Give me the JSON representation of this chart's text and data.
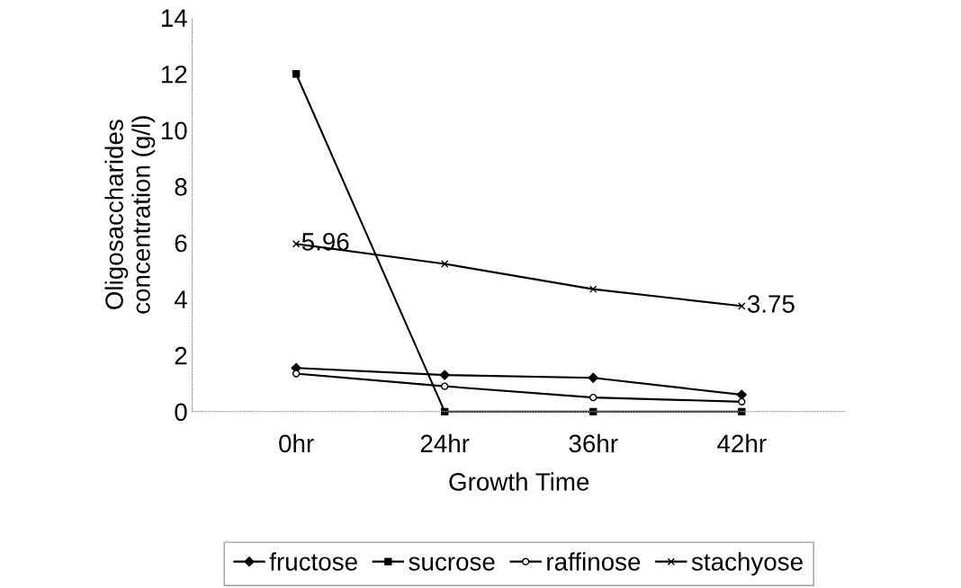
{
  "chart_data": {
    "type": "line",
    "xlabel": "Growth Time",
    "ylabel": "Oligosaccharides\nconcentration (g/l)",
    "categories": [
      "0hr",
      "24hr",
      "36hr",
      "42hr"
    ],
    "series": [
      {
        "name": "fructose",
        "color": "#000000",
        "marker": "diamond",
        "values": [
          1.55,
          1.3,
          1.2,
          0.6
        ]
      },
      {
        "name": "sucrose",
        "color": "#000000",
        "marker": "square",
        "values": [
          12,
          0,
          0,
          0
        ]
      },
      {
        "name": "raffinose",
        "color": "#000000",
        "marker": "circle",
        "values": [
          1.35,
          0.9,
          0.5,
          0.35
        ]
      },
      {
        "name": "stachyose",
        "color": "#000000",
        "marker": "cross",
        "values": [
          5.96,
          5.25,
          4.35,
          3.75
        ],
        "value_labels": [
          "5.96",
          null,
          null,
          "3.75"
        ]
      }
    ],
    "ylim": [
      0,
      14
    ],
    "yticks": [
      0,
      2,
      4,
      6,
      8,
      10,
      12,
      14
    ],
    "grid": false,
    "legend": "bottom"
  }
}
